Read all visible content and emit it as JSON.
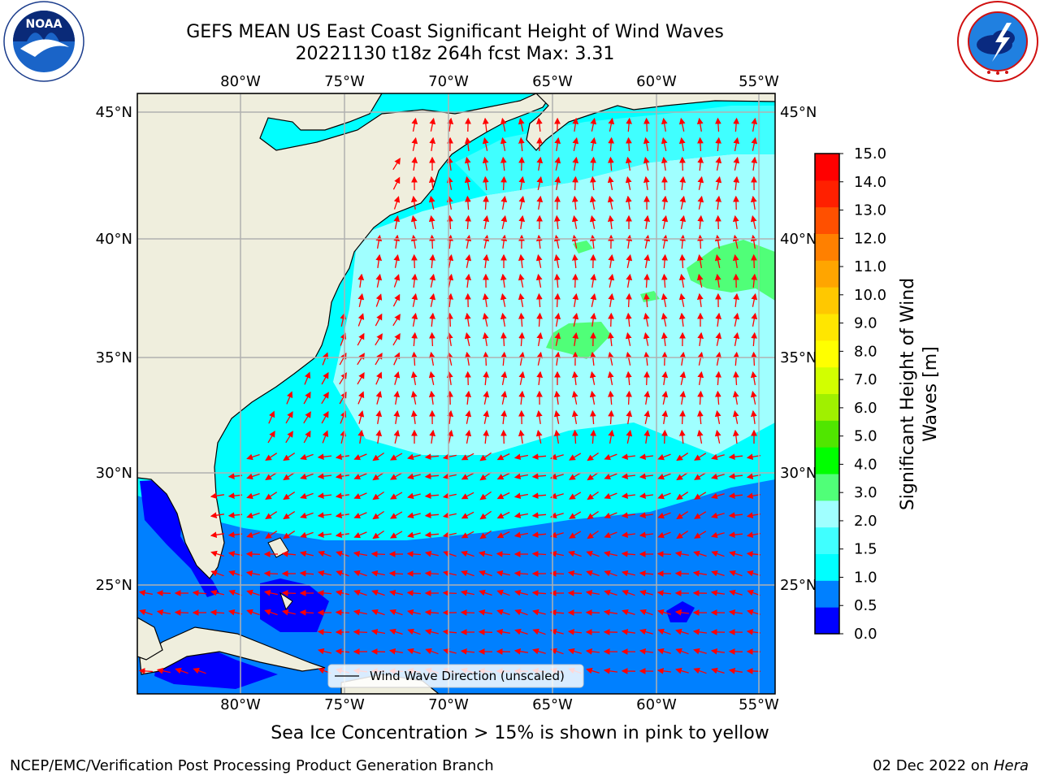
{
  "title": {
    "line1": "GEFS MEAN US East Coast Significant Height of Wind Waves",
    "line2": "20221130 t18z 264h fcst   Max: 3.31"
  },
  "logos": {
    "left": {
      "text": "NOAA",
      "icon": "noaa-seal-icon"
    },
    "right": {
      "icon": "nws-seal-icon"
    }
  },
  "map": {
    "lon_ticks": [
      "80°W",
      "75°W",
      "70°W",
      "65°W",
      "60°W",
      "55°W"
    ],
    "lat_ticks_left": [
      "45°N",
      "40°N",
      "35°N",
      "30°N",
      "25°N"
    ],
    "lat_ticks_right": [
      "45°N",
      "40°N",
      "35°N",
      "30°N",
      "25°N"
    ],
    "legend_label": "Wind Wave Direction (unscaled)",
    "colors": {
      "land": "#efeedd",
      "arrow": "#ff0000",
      "grid": "#b0b0b0"
    }
  },
  "colorbar": {
    "label": "Significant Height of Wind Waves [m]",
    "ticks": [
      "15.0",
      "14.0",
      "13.0",
      "12.0",
      "11.0",
      "10.0",
      "9.0",
      "8.0",
      "7.0",
      "6.0",
      "5.0",
      "4.0",
      "3.0",
      "2.0",
      "1.5",
      "1.0",
      "0.5",
      "0.0"
    ],
    "colors": [
      "#0000ff",
      "#0080ff",
      "#00ffff",
      "#40ffff",
      "#a0ffff",
      "#50ff78",
      "#00ff00",
      "#50e600",
      "#a0f000",
      "#d2ff00",
      "#ffff00",
      "#ffe600",
      "#ffc800",
      "#ffa500",
      "#ff8000",
      "#ff5000",
      "#ff2000",
      "#ff0000"
    ]
  },
  "caption": "Sea Ice Concentration > 15% is shown in pink to yellow",
  "credits": {
    "left": "NCEP/EMC/Verification Post Processing Product Generation Branch",
    "right_prefix": "02 Dec 2022 on ",
    "right_host": "Hera"
  }
}
